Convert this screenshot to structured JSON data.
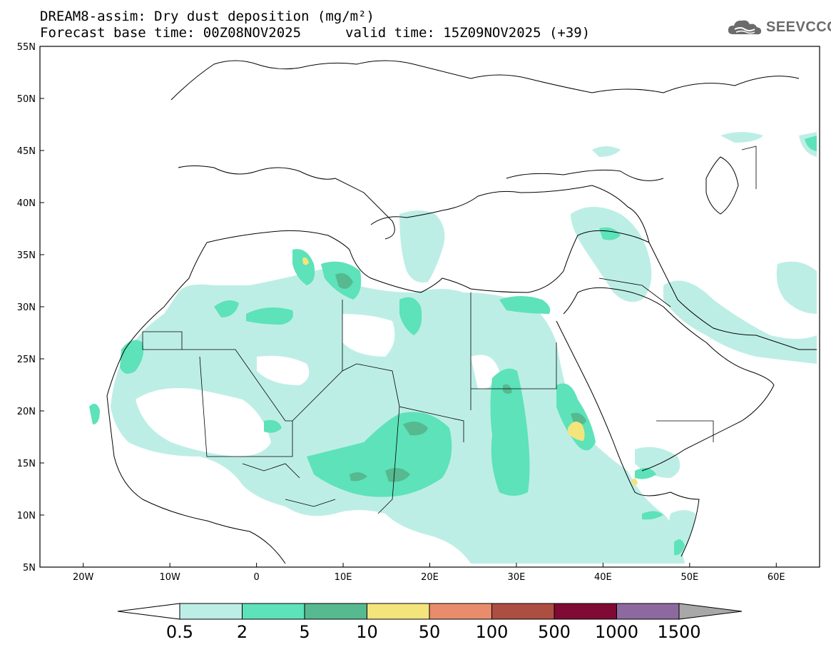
{
  "title": {
    "line1": "DREAM8-assim: Dry dust deposition (mg/m²)",
    "base_time": "Forecast base time: 00Z08NOV2025",
    "valid_time": "valid time: 15Z09NOV2025 (+39)"
  },
  "logo": {
    "text": "SEEVCCC",
    "icon": "cloud-icon"
  },
  "map": {
    "lon_range": [
      -25,
      65
    ],
    "lat_range": [
      5,
      55
    ],
    "lat_ticks": [
      "55N",
      "50N",
      "45N",
      "40N",
      "35N",
      "30N",
      "25N",
      "20N",
      "15N",
      "10N",
      "5N"
    ],
    "lon_ticks": [
      "20W",
      "10W",
      "0",
      "10E",
      "20E",
      "30E",
      "40E",
      "50E",
      "60E"
    ]
  },
  "colorbar": {
    "thresholds": [
      "0.5",
      "2",
      "5",
      "10",
      "50",
      "100",
      "500",
      "1000",
      "1500"
    ],
    "colors": [
      "#bdeee6",
      "#5de2b9",
      "#56b98f",
      "#f3e47c",
      "#e98c6b",
      "#ad4e42",
      "#7f0a33",
      "#8c6a9f",
      "#a8a8a8"
    ]
  }
}
